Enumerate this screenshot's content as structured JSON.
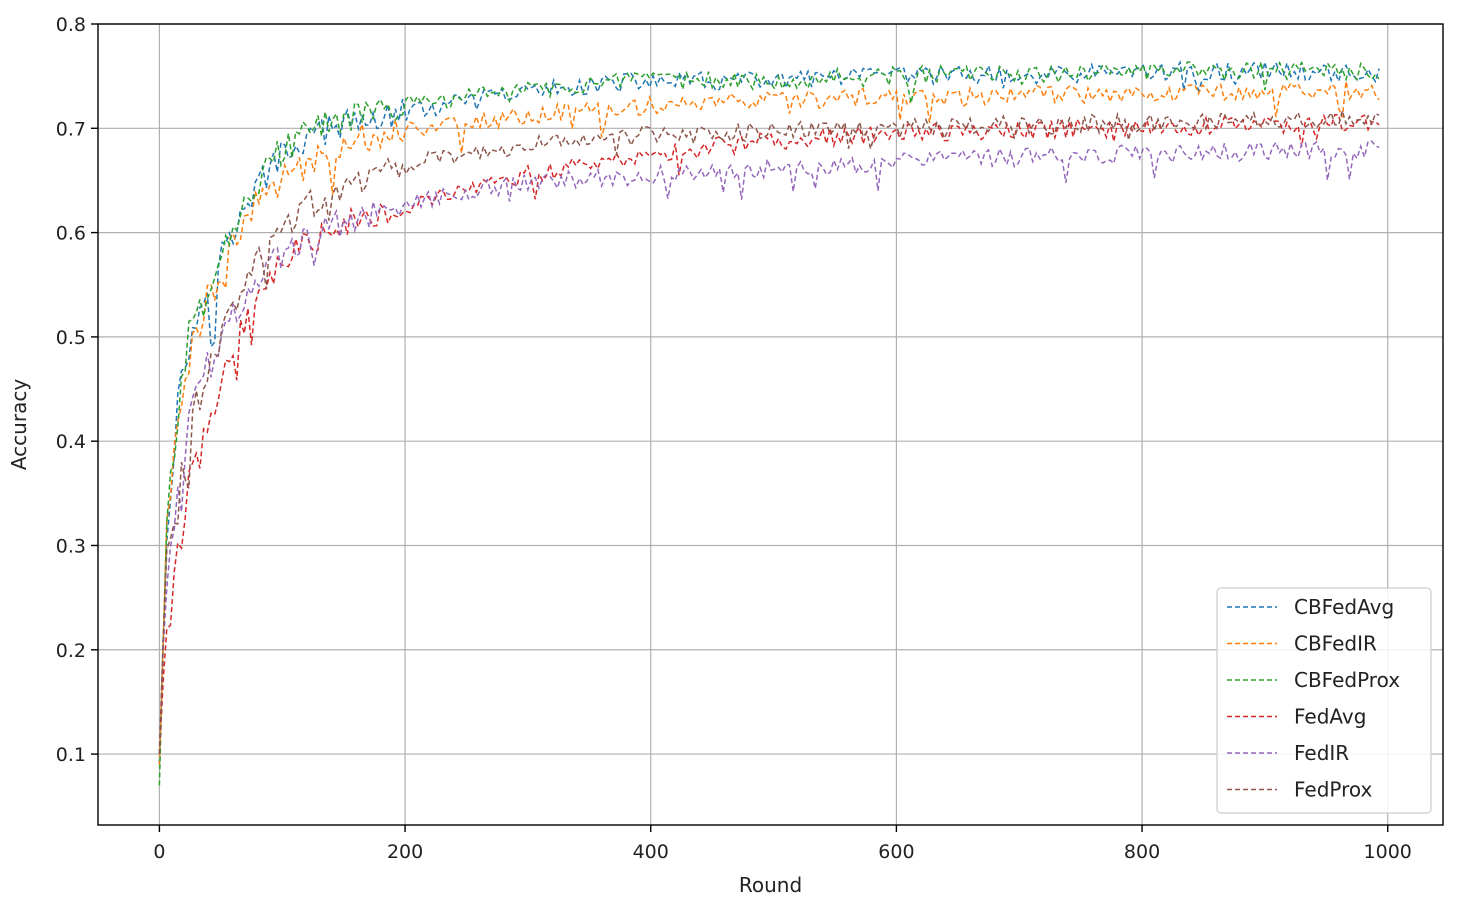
{
  "chart_data": {
    "type": "line",
    "title": "",
    "xlabel": "Round",
    "ylabel": "Accuracy",
    "xlim": [
      -50,
      1045
    ],
    "ylim": [
      0.032,
      0.8
    ],
    "xticks": [
      0,
      200,
      400,
      600,
      800,
      1000
    ],
    "yticks": [
      0.1,
      0.2,
      0.3,
      0.4,
      0.5,
      0.6,
      0.7,
      0.8
    ],
    "grid": true,
    "line_style": "dashed",
    "legend_position": "lower right",
    "x": [
      0,
      5,
      10,
      15,
      20,
      25,
      30,
      40,
      50,
      60,
      70,
      80,
      100,
      120,
      140,
      160,
      180,
      200,
      250,
      300,
      350,
      400,
      450,
      500,
      550,
      600,
      650,
      700,
      750,
      800,
      850,
      900,
      950,
      995
    ],
    "series": [
      {
        "name": "CBFedAvg",
        "color": "#1f77b4",
        "values": [
          0.09,
          0.3,
          0.38,
          0.43,
          0.47,
          0.5,
          0.515,
          0.55,
          0.58,
          0.6,
          0.62,
          0.645,
          0.675,
          0.69,
          0.7,
          0.705,
          0.71,
          0.715,
          0.725,
          0.735,
          0.742,
          0.745,
          0.745,
          0.745,
          0.748,
          0.75,
          0.752,
          0.75,
          0.752,
          0.755,
          0.754,
          0.755,
          0.755,
          0.75
        ]
      },
      {
        "name": "CBFedIR",
        "color": "#ff7f0e",
        "values": [
          0.09,
          0.29,
          0.37,
          0.42,
          0.46,
          0.49,
          0.51,
          0.54,
          0.565,
          0.59,
          0.61,
          0.63,
          0.65,
          0.665,
          0.68,
          0.69,
          0.695,
          0.7,
          0.705,
          0.712,
          0.718,
          0.722,
          0.725,
          0.726,
          0.728,
          0.73,
          0.73,
          0.732,
          0.733,
          0.735,
          0.735,
          0.736,
          0.737,
          0.735
        ]
      },
      {
        "name": "CBFedProx",
        "color": "#2ca02c",
        "values": [
          0.07,
          0.3,
          0.38,
          0.43,
          0.47,
          0.5,
          0.52,
          0.555,
          0.585,
          0.605,
          0.625,
          0.65,
          0.68,
          0.695,
          0.705,
          0.712,
          0.717,
          0.722,
          0.73,
          0.737,
          0.742,
          0.745,
          0.746,
          0.746,
          0.748,
          0.75,
          0.752,
          0.751,
          0.752,
          0.755,
          0.755,
          0.755,
          0.756,
          0.752
        ]
      },
      {
        "name": "FedAvg",
        "color": "#d62728",
        "values": [
          0.1,
          0.22,
          0.26,
          0.29,
          0.33,
          0.36,
          0.38,
          0.41,
          0.46,
          0.49,
          0.52,
          0.54,
          0.57,
          0.59,
          0.605,
          0.615,
          0.62,
          0.625,
          0.64,
          0.655,
          0.665,
          0.675,
          0.682,
          0.688,
          0.692,
          0.695,
          0.697,
          0.698,
          0.7,
          0.7,
          0.702,
          0.703,
          0.705,
          0.705
        ]
      },
      {
        "name": "FedIR",
        "color": "#9467bd",
        "values": [
          0.1,
          0.27,
          0.32,
          0.36,
          0.39,
          0.42,
          0.44,
          0.47,
          0.5,
          0.52,
          0.54,
          0.555,
          0.58,
          0.595,
          0.605,
          0.615,
          0.622,
          0.628,
          0.64,
          0.648,
          0.652,
          0.655,
          0.658,
          0.662,
          0.665,
          0.668,
          0.67,
          0.672,
          0.674,
          0.675,
          0.677,
          0.678,
          0.679,
          0.68
        ]
      },
      {
        "name": "FedProx",
        "color": "#8c564b",
        "values": [
          0.1,
          0.28,
          0.31,
          0.34,
          0.37,
          0.4,
          0.43,
          0.47,
          0.5,
          0.53,
          0.555,
          0.575,
          0.6,
          0.625,
          0.64,
          0.65,
          0.66,
          0.665,
          0.675,
          0.685,
          0.69,
          0.693,
          0.695,
          0.697,
          0.699,
          0.7,
          0.702,
          0.703,
          0.704,
          0.705,
          0.706,
          0.707,
          0.708,
          0.708
        ]
      }
    ]
  }
}
